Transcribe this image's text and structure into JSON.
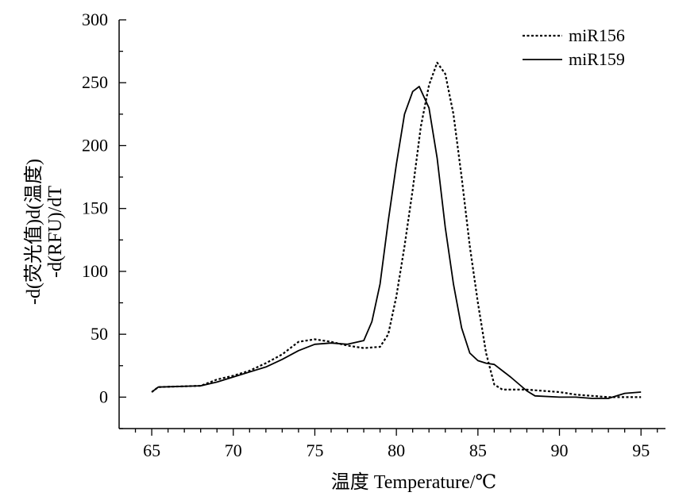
{
  "chart_data": {
    "type": "line",
    "xlabel": "温度  Temperature/℃",
    "ylabel_line1": "-d(荧光值)d(温度)",
    "ylabel_line2": "-d(RFU)/dT",
    "xlim": [
      63,
      96.5
    ],
    "ylim": [
      -25,
      300
    ],
    "x_ticks": [
      65,
      70,
      75,
      80,
      85,
      90,
      95
    ],
    "y_ticks": [
      0,
      50,
      100,
      150,
      200,
      250,
      300
    ],
    "legend_position": "top-right",
    "grid": false,
    "series": [
      {
        "name": "miR156",
        "style": "dotted",
        "color": "#000000",
        "points": [
          [
            65,
            4
          ],
          [
            65.4,
            8
          ],
          [
            68,
            9
          ],
          [
            69,
            14
          ],
          [
            70,
            17
          ],
          [
            71,
            21
          ],
          [
            72,
            27
          ],
          [
            73,
            34
          ],
          [
            74,
            44
          ],
          [
            75,
            46
          ],
          [
            76,
            44
          ],
          [
            77,
            41
          ],
          [
            78,
            39
          ],
          [
            79,
            40
          ],
          [
            79.5,
            50
          ],
          [
            80,
            80
          ],
          [
            80.5,
            120
          ],
          [
            81,
            165
          ],
          [
            81.5,
            215
          ],
          [
            82,
            248
          ],
          [
            82.5,
            266
          ],
          [
            83,
            257
          ],
          [
            83.5,
            225
          ],
          [
            84,
            175
          ],
          [
            84.5,
            120
          ],
          [
            85,
            75
          ],
          [
            85.5,
            35
          ],
          [
            86,
            10
          ],
          [
            86.5,
            6
          ],
          [
            88,
            6
          ],
          [
            89,
            5
          ],
          [
            90,
            4
          ],
          [
            91,
            2
          ],
          [
            92,
            1
          ],
          [
            93,
            0
          ],
          [
            94,
            0
          ],
          [
            95,
            0
          ]
        ]
      },
      {
        "name": "miR159",
        "style": "solid",
        "color": "#000000",
        "points": [
          [
            65,
            4
          ],
          [
            65.4,
            8
          ],
          [
            68,
            9
          ],
          [
            69,
            12
          ],
          [
            70,
            16
          ],
          [
            71,
            20
          ],
          [
            72,
            24
          ],
          [
            73,
            30
          ],
          [
            74,
            37
          ],
          [
            75,
            42
          ],
          [
            76,
            43
          ],
          [
            77,
            42
          ],
          [
            78,
            45
          ],
          [
            78.5,
            60
          ],
          [
            79,
            90
          ],
          [
            79.5,
            140
          ],
          [
            80,
            185
          ],
          [
            80.5,
            225
          ],
          [
            81,
            243
          ],
          [
            81.4,
            247
          ],
          [
            82,
            230
          ],
          [
            82.5,
            190
          ],
          [
            83,
            135
          ],
          [
            83.5,
            90
          ],
          [
            84,
            55
          ],
          [
            84.5,
            35
          ],
          [
            85,
            29
          ],
          [
            85.5,
            27
          ],
          [
            86,
            26
          ],
          [
            87,
            16
          ],
          [
            88,
            5
          ],
          [
            88.5,
            1
          ],
          [
            90,
            0
          ],
          [
            91,
            0
          ],
          [
            92,
            -1
          ],
          [
            93,
            -1
          ],
          [
            94,
            3
          ],
          [
            95,
            4
          ]
        ]
      }
    ]
  }
}
